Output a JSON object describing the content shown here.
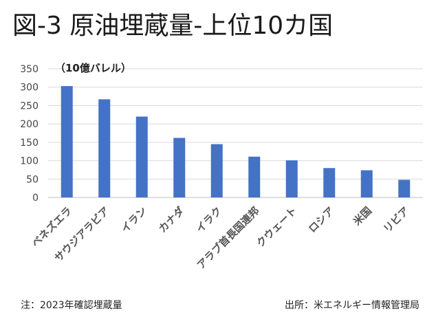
{
  "title": "図-3 原油埋蔵量-上位10カ国",
  "note_left": "注：2023年確認埋蔵量",
  "note_right": "出所：米エネルギー情報管理局",
  "colors": {
    "bar": "#4472C4",
    "grid": "#d9d9d9",
    "axis": "#bfbfbf"
  },
  "chart_data": {
    "type": "bar",
    "unit_label": "（10億バレル）",
    "categories": [
      "ベネズエラ",
      "サウジアラビア",
      "イラン",
      "カナダ",
      "イラク",
      "アラブ首長国連邦",
      "クウェート",
      "ロシア",
      "米国",
      "リビア"
    ],
    "values": [
      303,
      267,
      220,
      162,
      145,
      111,
      101,
      80,
      74,
      48
    ],
    "yticks": [
      0,
      50,
      100,
      150,
      200,
      250,
      300,
      350
    ],
    "ylim": [
      0,
      350
    ],
    "grid": true
  }
}
